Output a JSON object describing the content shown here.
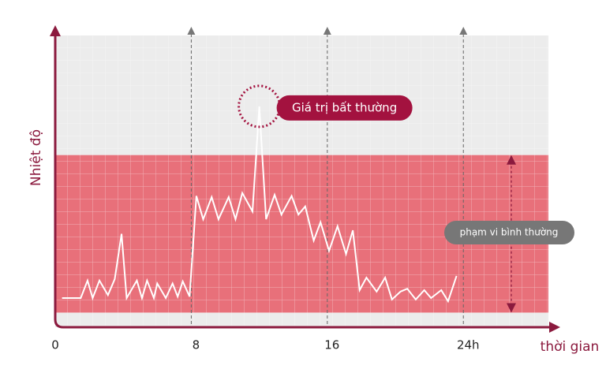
{
  "chart_data": {
    "type": "line",
    "y_label": "Nhiệt độ",
    "x_label": "thời gian",
    "x": [
      0.4,
      1.5,
      1.9,
      2.2,
      2.6,
      3.1,
      3.5,
      3.9,
      4.2,
      4.8,
      5.1,
      5.4,
      5.8,
      6.0,
      6.5,
      6.9,
      7.2,
      7.5,
      7.9,
      8.3,
      8.7,
      9.2,
      9.6,
      10.2,
      10.6,
      11.0,
      11.6,
      12.0,
      12.4,
      12.9,
      13.3,
      13.9,
      14.3,
      14.7,
      15.2,
      15.6,
      16.1,
      16.6,
      17.1,
      17.5,
      17.9,
      18.3,
      18.9,
      19.4,
      19.8,
      20.3,
      20.7,
      21.2,
      21.7,
      22.1,
      22.7,
      23.1,
      23.6
    ],
    "values": [
      10,
      10,
      16,
      10,
      16,
      11,
      16.5,
      32,
      10,
      16,
      10,
      16,
      10,
      15,
      10,
      15,
      10.5,
      15.7,
      10.5,
      45,
      37,
      44.6,
      37,
      44.6,
      37,
      46,
      39.7,
      75.7,
      37,
      45.4,
      38.6,
      45,
      38.6,
      41.4,
      29.7,
      36,
      26.2,
      34.6,
      25.1,
      33.2,
      12.7,
      17,
      12.2,
      17,
      9.5,
      12.2,
      13.2,
      9.5,
      12.7,
      10,
      12.7,
      8.9,
      17.6
    ],
    "color": "#ffffff",
    "xlim": [
      0,
      29
    ],
    "ylim": [
      0,
      100
    ],
    "xticks": [
      0,
      8,
      16,
      {
        "value": 24,
        "label": "24h"
      }
    ],
    "normal_range": [
      5,
      59
    ],
    "band_color": "#e8707a",
    "annotations": {
      "anomaly": "Giá trị bất thường",
      "normal_range": "phạm vi bình thường"
    }
  }
}
